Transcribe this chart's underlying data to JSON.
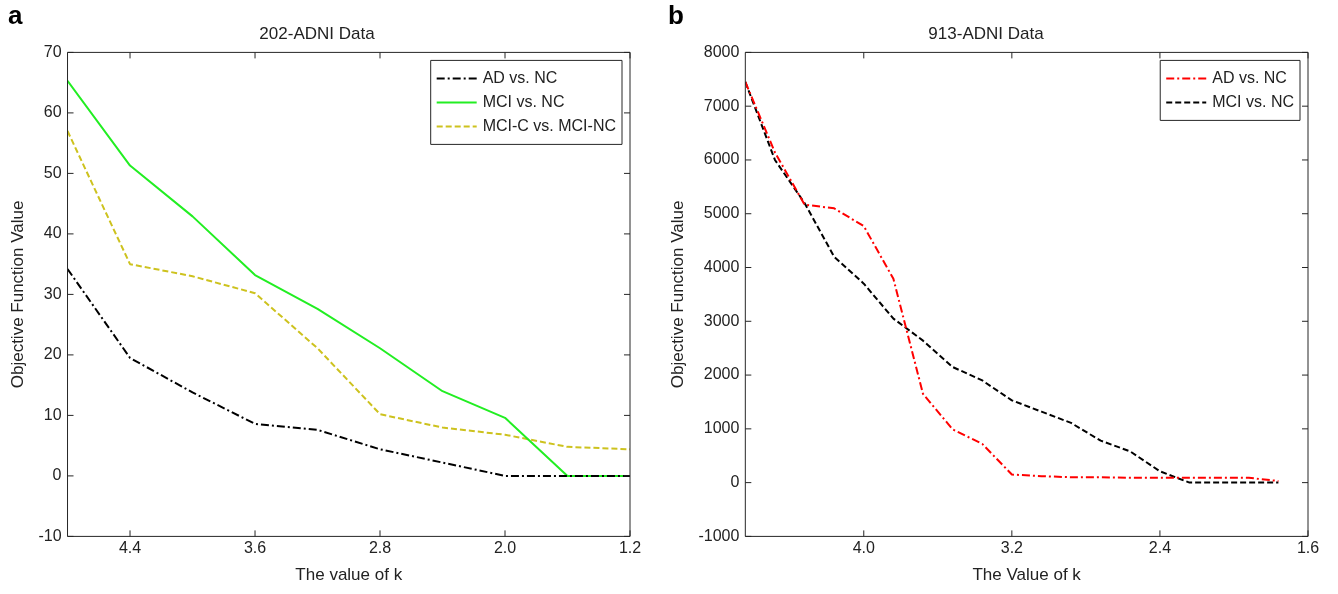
{
  "chart_data": [
    {
      "type": "line",
      "title": "202-ADNI Data",
      "xlabel": "The value of k",
      "ylabel": "Objective Function Value",
      "annotations": [
        "a"
      ],
      "x": [
        4.8,
        4.4,
        4.0,
        3.6,
        3.2,
        2.8,
        2.4,
        2.0,
        1.6,
        1.2
      ],
      "series": [
        {
          "name": "AD vs. NC",
          "color": "#000000",
          "line_style": "dashdot",
          "values": [
            34.2,
            19.5,
            13.8,
            8.6,
            7.6,
            4.4,
            2.2,
            0,
            0,
            0
          ]
        },
        {
          "name": "MCI vs. NC",
          "color": "#22ee22",
          "line_style": "solid",
          "values": [
            65.3,
            51.3,
            42.9,
            33.2,
            27.6,
            21.1,
            14.0,
            9.6,
            0,
            0
          ]
        },
        {
          "name": "MCI-C vs. MCI-NC",
          "color": "#cdc21e",
          "line_style": "dashed",
          "values": [
            57,
            35.0,
            33.0,
            30.2,
            21.1,
            10.2,
            8.0,
            6.8,
            4.8,
            4.4
          ]
        }
      ],
      "xlim": [
        4.8,
        1.2
      ],
      "xticks": [
        4.4,
        3.6,
        2.8,
        {
          "value": 2,
          "label": "2.0"
        },
        1.2
      ],
      "ylim": [
        -10,
        70
      ],
      "yticks": [
        -10,
        0,
        10,
        20,
        30,
        40,
        50,
        60,
        70
      ],
      "grid": false,
      "legend": "top right",
      "marker": "none"
    },
    {
      "type": "line",
      "title": "913-ADNI Data",
      "xlabel": "The Value of k",
      "ylabel": "Objective Function Value",
      "annotations": [
        "b"
      ],
      "x": [
        4.64,
        4.48,
        4.32,
        4.16,
        4.0,
        3.84,
        3.68,
        3.52,
        3.36,
        3.2,
        3.04,
        2.88,
        2.72,
        2.56,
        2.4,
        2.24,
        2.08,
        1.92,
        1.76
      ],
      "series": [
        {
          "name": "AD vs. NC",
          "color": "#ff0000",
          "line_style": "dashdot",
          "values": [
            7450,
            6140,
            5170,
            5100,
            4770,
            3790,
            1650,
            990,
            720,
            150,
            120,
            100,
            100,
            90,
            90,
            90,
            90,
            90,
            30
          ]
        },
        {
          "name": "MCI vs. NC",
          "color": "#000000",
          "line_style": "dashed",
          "values": [
            7450,
            6000,
            5200,
            4200,
            3700,
            3050,
            2640,
            2150,
            1900,
            1530,
            1320,
            1110,
            780,
            580,
            210,
            0,
            0,
            0,
            0
          ]
        }
      ],
      "xlim": [
        4.64,
        1.6
      ],
      "xticks": [
        {
          "value": 4,
          "label": "4.0"
        },
        3.2,
        2.4,
        1.6
      ],
      "ylim": [
        -1000,
        8000
      ],
      "yticks": [
        -1000,
        0,
        1000,
        2000,
        3000,
        4000,
        5000,
        6000,
        7000,
        8000
      ],
      "grid": false,
      "legend": "top right",
      "marker": "none"
    }
  ]
}
